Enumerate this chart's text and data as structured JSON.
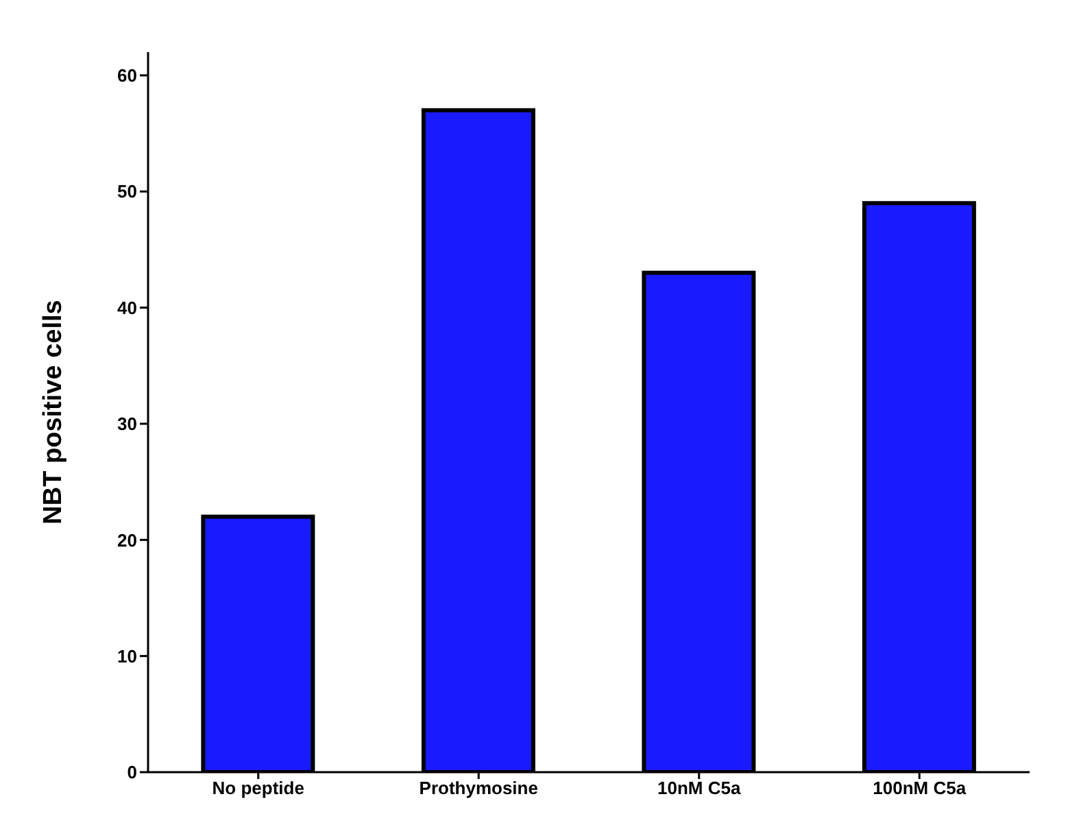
{
  "chart_data": {
    "type": "bar",
    "ylabel": "NBT positive cells",
    "categories": [
      "No peptide",
      "Prothymosine",
      "10nM C5a",
      "100nM C5a"
    ],
    "values": [
      22,
      57,
      43,
      49
    ],
    "color": "#1a1aff",
    "ylim": [
      0,
      62
    ],
    "yticks": [
      0,
      10,
      20,
      30,
      40,
      50,
      60
    ],
    "grid": false,
    "legend": false
  }
}
